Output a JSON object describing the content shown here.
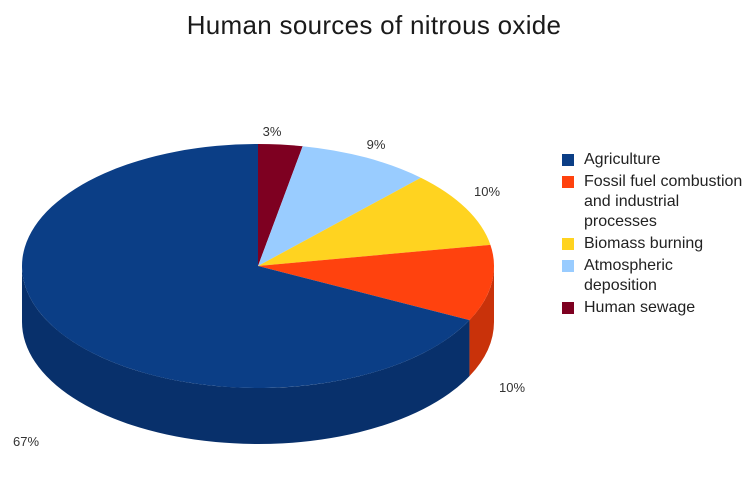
{
  "chart_data": {
    "type": "pie",
    "title": "Human sources of nitrous oxide",
    "slices": [
      {
        "label": "Agriculture",
        "value": 67,
        "value_label": "67%",
        "color": "#0b3e86",
        "side_color": "#08306b"
      },
      {
        "label": "Fossil fuel combustion and industrial processes",
        "value": 10,
        "value_label": "10%",
        "color": "#ff420e",
        "side_color": "#c9320a"
      },
      {
        "label": "Biomass burning",
        "value": 10,
        "value_label": "10%",
        "color": "#ffd320",
        "side_color": "#c9a515"
      },
      {
        "label": "Atmospheric deposition",
        "value": 9,
        "value_label": "9%",
        "color": "#99ccff",
        "side_color": "#7aa6cc"
      },
      {
        "label": "Human sewage",
        "value": 3,
        "value_label": "3%",
        "color": "#7e0021",
        "side_color": "#5c0018"
      }
    ],
    "legend_position": "right"
  }
}
